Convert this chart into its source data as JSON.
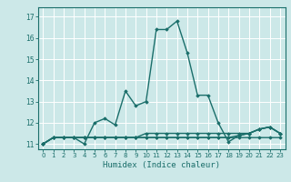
{
  "title": "",
  "xlabel": "Humidex (Indice chaleur)",
  "bg_color": "#cce8e8",
  "grid_color": "#ffffff",
  "line_color": "#1a6e6a",
  "xlim": [
    -0.5,
    23.5
  ],
  "ylim": [
    10.75,
    17.45
  ],
  "yticks": [
    11,
    12,
    13,
    14,
    15,
    16,
    17
  ],
  "xticks": [
    0,
    1,
    2,
    3,
    4,
    5,
    6,
    7,
    8,
    9,
    10,
    11,
    12,
    13,
    14,
    15,
    16,
    17,
    18,
    19,
    20,
    21,
    22,
    23
  ],
  "series": [
    [
      11.0,
      11.3,
      11.3,
      11.3,
      11.0,
      12.0,
      12.2,
      11.9,
      13.5,
      12.8,
      13.0,
      16.4,
      16.4,
      16.8,
      15.3,
      13.3,
      13.3,
      12.0,
      11.1,
      11.4,
      11.5,
      11.7,
      11.8,
      11.5
    ],
    [
      11.0,
      11.3,
      11.3,
      11.3,
      11.3,
      11.3,
      11.3,
      11.3,
      11.3,
      11.3,
      11.3,
      11.3,
      11.3,
      11.3,
      11.3,
      11.3,
      11.3,
      11.3,
      11.3,
      11.3,
      11.3,
      11.3,
      11.3,
      11.3
    ],
    [
      11.0,
      11.3,
      11.3,
      11.3,
      11.3,
      11.3,
      11.3,
      11.3,
      11.3,
      11.3,
      11.3,
      11.3,
      11.3,
      11.3,
      11.3,
      11.3,
      11.3,
      11.3,
      11.3,
      11.4,
      11.5,
      11.7,
      11.8,
      11.5
    ],
    [
      11.0,
      11.3,
      11.3,
      11.3,
      11.3,
      11.3,
      11.3,
      11.3,
      11.3,
      11.3,
      11.5,
      11.5,
      11.5,
      11.5,
      11.5,
      11.5,
      11.5,
      11.5,
      11.5,
      11.5,
      11.5,
      11.7,
      11.8,
      11.5
    ]
  ]
}
